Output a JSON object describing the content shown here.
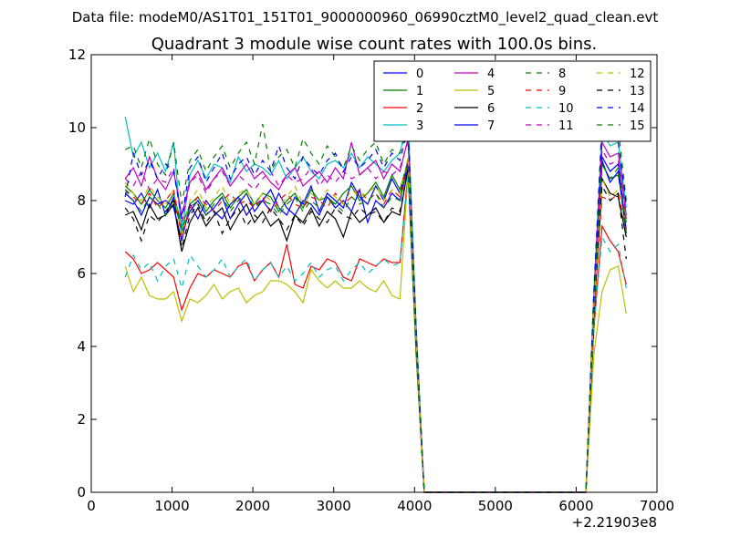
{
  "chart_data": {
    "type": "line",
    "suptitle": "Data file: modeM0/AS1T01_151T01_9000000960_06990cztM0_level2_quad_clean.evt",
    "title": "Quadrant 3 module wise count rates with 100.0s bins.",
    "xlabel": "",
    "ylabel": "",
    "x_offset_label": "+2.21903e8",
    "xlim": [
      0,
      7000
    ],
    "ylim": [
      0,
      12
    ],
    "x_ticks": [
      0,
      1000,
      2000,
      3000,
      4000,
      5000,
      6000,
      7000
    ],
    "x_tick_labels": [
      "0",
      "1000",
      "2000",
      "3000",
      "4000",
      "5000",
      "6000",
      "7000"
    ],
    "y_ticks": [
      0,
      2,
      4,
      6,
      8,
      10,
      12
    ],
    "y_tick_labels": [
      "0",
      "2",
      "4",
      "6",
      "8",
      "10",
      "12"
    ],
    "legend_position": "top-right",
    "x": [
      420,
      520,
      620,
      720,
      820,
      920,
      1020,
      1120,
      1220,
      1320,
      1420,
      1520,
      1620,
      1720,
      1820,
      1920,
      2020,
      2120,
      2220,
      2320,
      2420,
      2520,
      2620,
      2720,
      2820,
      2920,
      3020,
      3120,
      3220,
      3320,
      3420,
      3520,
      3620,
      3720,
      3820,
      3920,
      4020,
      4120,
      6120,
      6220,
      6320,
      6420,
      6520,
      6620
    ],
    "series": [
      {
        "name": "0",
        "color": "#0000ff",
        "dash": "solid",
        "values": [
          8.0,
          7.9,
          8.2,
          7.8,
          8.3,
          7.6,
          8.1,
          7.1,
          7.7,
          8.0,
          7.6,
          7.8,
          8.1,
          7.5,
          7.9,
          8.2,
          7.7,
          8.0,
          8.3,
          7.8,
          7.6,
          8.1,
          7.9,
          8.4,
          7.7,
          8.2,
          8.0,
          7.8,
          8.5,
          8.1,
          7.9,
          8.4,
          8.0,
          8.6,
          8.2,
          9.0,
          4.0,
          0.0,
          0.0,
          5.0,
          9.2,
          8.8,
          9.0,
          7.2
        ]
      },
      {
        "name": "1",
        "color": "#008000",
        "dash": "solid",
        "values": [
          8.4,
          8.2,
          7.9,
          8.3,
          8.0,
          7.8,
          8.2,
          7.3,
          7.9,
          8.1,
          7.7,
          8.0,
          8.2,
          7.8,
          8.1,
          8.3,
          7.9,
          8.2,
          8.1,
          7.7,
          8.0,
          8.2,
          7.8,
          8.3,
          8.0,
          8.1,
          7.9,
          8.2,
          8.4,
          8.0,
          8.2,
          8.5,
          8.1,
          8.7,
          8.3,
          9.1,
          4.0,
          0.0,
          0.0,
          5.0,
          9.0,
          8.6,
          8.7,
          7.4
        ]
      },
      {
        "name": "2",
        "color": "#ff0000",
        "dash": "solid",
        "values": [
          6.6,
          6.4,
          6.0,
          6.1,
          6.3,
          6.1,
          5.9,
          5.0,
          5.6,
          6.0,
          5.9,
          6.1,
          6.0,
          5.9,
          6.2,
          6.3,
          5.8,
          6.1,
          6.3,
          5.9,
          6.8,
          5.7,
          5.6,
          6.2,
          6.1,
          6.4,
          6.3,
          5.9,
          5.8,
          6.4,
          6.3,
          6.2,
          6.4,
          6.3,
          6.3,
          8.8,
          3.8,
          0.0,
          0.0,
          4.5,
          7.3,
          6.9,
          6.6,
          5.7
        ]
      },
      {
        "name": "3",
        "color": "#00bfbf",
        "dash": "solid",
        "values": [
          10.3,
          9.2,
          9.6,
          8.9,
          9.3,
          8.8,
          9.6,
          7.1,
          8.7,
          9.1,
          8.6,
          9.0,
          8.9,
          8.5,
          9.2,
          8.8,
          9.0,
          8.9,
          8.7,
          9.1,
          8.6,
          8.9,
          9.2,
          8.8,
          8.6,
          9.0,
          9.1,
          8.9,
          9.3,
          8.9,
          9.2,
          9.0,
          8.8,
          9.1,
          9.3,
          10.3,
          4.5,
          0.0,
          0.0,
          5.5,
          9.9,
          9.5,
          9.6,
          7.8
        ]
      },
      {
        "name": "4",
        "color": "#bf00bf",
        "dash": "solid",
        "values": [
          8.6,
          8.9,
          8.4,
          9.2,
          8.6,
          8.3,
          8.8,
          7.6,
          8.5,
          8.8,
          8.3,
          8.6,
          8.9,
          8.4,
          8.7,
          9.0,
          8.6,
          8.8,
          8.5,
          8.3,
          8.7,
          8.9,
          8.4,
          8.6,
          8.8,
          8.5,
          8.9,
          8.6,
          9.6,
          8.7,
          8.9,
          9.1,
          8.6,
          9.0,
          8.8,
          9.7,
          4.2,
          0.0,
          0.0,
          5.3,
          9.6,
          9.2,
          9.3,
          7.6
        ]
      },
      {
        "name": "5",
        "color": "#bfbf00",
        "dash": "solid",
        "values": [
          6.2,
          5.5,
          5.9,
          5.4,
          5.3,
          5.3,
          5.5,
          4.7,
          5.3,
          5.2,
          5.4,
          5.7,
          5.3,
          5.5,
          5.6,
          5.2,
          5.4,
          5.5,
          5.8,
          5.8,
          5.7,
          5.5,
          5.2,
          6.1,
          5.8,
          5.6,
          5.8,
          5.6,
          5.6,
          5.8,
          5.6,
          5.5,
          5.8,
          5.4,
          5.3,
          8.8,
          3.7,
          0.0,
          0.0,
          3.8,
          5.5,
          6.1,
          6.2,
          4.9
        ]
      },
      {
        "name": "6",
        "color": "#000000",
        "dash": "solid",
        "values": [
          7.6,
          7.7,
          7.2,
          7.9,
          7.5,
          7.6,
          7.9,
          6.6,
          7.4,
          7.8,
          7.3,
          7.6,
          7.8,
          7.2,
          7.6,
          7.9,
          7.4,
          7.7,
          7.3,
          7.5,
          6.9,
          7.6,
          7.4,
          7.8,
          7.3,
          7.7,
          7.5,
          7.0,
          7.7,
          7.4,
          7.6,
          7.8,
          7.4,
          7.7,
          7.6,
          8.9,
          3.9,
          0.0,
          0.0,
          4.8,
          8.6,
          8.2,
          8.1,
          7.0
        ]
      },
      {
        "name": "7",
        "color": "#0000ff",
        "dash": "solid",
        "values": [
          8.2,
          8.0,
          7.6,
          8.1,
          7.9,
          8.0,
          7.8,
          6.9,
          7.9,
          7.5,
          8.0,
          7.7,
          7.5,
          7.9,
          8.1,
          7.6,
          7.9,
          8.0,
          7.7,
          8.2,
          7.8,
          7.6,
          8.0,
          7.9,
          7.6,
          8.1,
          7.8,
          8.0,
          7.7,
          8.3,
          7.4,
          8.0,
          7.8,
          8.2,
          8.0,
          9.0,
          4.0,
          0.0,
          0.0,
          5.2,
          9.1,
          8.5,
          8.8,
          7.1
        ]
      },
      {
        "name": "8",
        "color": "#008000",
        "dash": "dashed",
        "values": [
          9.4,
          9.5,
          8.9,
          9.7,
          9.0,
          8.7,
          9.6,
          7.9,
          9.1,
          9.4,
          8.8,
          9.2,
          9.5,
          8.9,
          9.3,
          9.6,
          9.0,
          10.1,
          8.8,
          9.2,
          9.4,
          8.9,
          9.7,
          9.3,
          9.0,
          9.5,
          9.2,
          8.9,
          9.5,
          9.1,
          9.4,
          9.6,
          9.0,
          9.4,
          9.3,
          10.0,
          4.5,
          0.0,
          0.0,
          5.6,
          10.2,
          9.9,
          10.0,
          8.0
        ]
      },
      {
        "name": "9",
        "color": "#ff0000",
        "dash": "dashed",
        "values": [
          8.3,
          8.1,
          7.9,
          8.2,
          7.8,
          8.0,
          8.3,
          7.0,
          7.8,
          8.1,
          7.9,
          7.7,
          8.0,
          8.2,
          7.9,
          8.0,
          7.8,
          8.1,
          7.7,
          8.0,
          8.2,
          7.9,
          7.8,
          8.1,
          8.0,
          7.8,
          8.2,
          7.9,
          8.1,
          8.3,
          8.0,
          8.2,
          7.9,
          8.3,
          8.1,
          9.1,
          4.0,
          0.0,
          0.0,
          5.0,
          8.1,
          8.0,
          8.2,
          7.2
        ]
      },
      {
        "name": "10",
        "color": "#00bfbf",
        "dash": "dashed",
        "values": [
          5.9,
          6.5,
          6.1,
          6.3,
          5.8,
          6.2,
          6.4,
          5.6,
          6.5,
          6.2,
          5.9,
          6.1,
          6.4,
          5.9,
          6.2,
          6.4,
          5.8,
          6.1,
          6.3,
          5.9,
          6.2,
          5.8,
          6.0,
          6.3,
          5.9,
          6.1,
          6.2,
          5.8,
          6.1,
          6.3,
          6.0,
          6.2,
          6.4,
          6.2,
          6.3,
          8.7,
          3.8,
          0.0,
          0.0,
          4.6,
          7.0,
          6.6,
          6.8,
          5.6
        ]
      },
      {
        "name": "11",
        "color": "#bf00bf",
        "dash": "dashed",
        "values": [
          8.6,
          8.4,
          8.8,
          8.3,
          8.6,
          8.5,
          8.9,
          7.4,
          8.5,
          8.7,
          8.2,
          8.6,
          8.8,
          8.4,
          8.7,
          8.5,
          8.3,
          8.6,
          8.8,
          8.4,
          8.7,
          8.5,
          8.6,
          8.9,
          8.4,
          8.7,
          8.5,
          8.8,
          8.6,
          8.7,
          8.9,
          8.6,
          8.8,
          8.7,
          8.9,
          9.6,
          4.2,
          0.0,
          0.0,
          5.3,
          9.4,
          9.0,
          9.1,
          7.5
        ]
      },
      {
        "name": "12",
        "color": "#bfbf00",
        "dash": "dashed",
        "values": [
          8.5,
          8.2,
          8.0,
          8.4,
          8.1,
          7.9,
          8.3,
          7.0,
          8.0,
          8.3,
          7.8,
          8.1,
          8.4,
          7.9,
          8.2,
          8.3,
          7.9,
          8.2,
          8.0,
          7.8,
          8.1,
          8.4,
          7.9,
          8.2,
          8.0,
          8.3,
          8.1,
          7.9,
          8.3,
          8.1,
          8.2,
          8.4,
          8.0,
          8.3,
          8.2,
          9.2,
          4.1,
          0.0,
          0.0,
          5.1,
          8.6,
          8.1,
          8.3,
          7.3
        ]
      },
      {
        "name": "13",
        "color": "#000000",
        "dash": "dashed",
        "values": [
          7.8,
          7.5,
          6.9,
          7.6,
          7.4,
          7.7,
          8.0,
          6.7,
          7.6,
          7.9,
          7.4,
          7.7,
          7.1,
          7.5,
          7.8,
          7.3,
          7.6,
          7.4,
          7.8,
          7.5,
          7.2,
          7.6,
          7.3,
          7.7,
          7.5,
          7.4,
          7.8,
          7.6,
          7.5,
          7.8,
          7.6,
          7.7,
          7.4,
          7.8,
          7.7,
          8.9,
          3.9,
          0.0,
          0.0,
          4.9,
          8.4,
          8.0,
          8.2,
          6.4
        ]
      },
      {
        "name": "14",
        "color": "#0000ff",
        "dash": "dashed",
        "values": [
          8.1,
          9.3,
          8.7,
          9.1,
          8.6,
          9.0,
          8.8,
          7.5,
          8.9,
          9.2,
          8.5,
          8.9,
          9.3,
          8.6,
          9.0,
          9.2,
          8.7,
          9.1,
          8.8,
          9.5,
          8.9,
          8.6,
          9.2,
          8.9,
          8.7,
          9.1,
          9.3,
          8.8,
          9.2,
          8.9,
          9.1,
          9.4,
          8.9,
          9.3,
          9.1,
          10.0,
          4.4,
          0.0,
          0.0,
          5.5,
          10.0,
          9.7,
          9.6,
          7.9
        ]
      },
      {
        "name": "15",
        "color": "#008000",
        "dash": "dashed",
        "values": [
          8.3,
          8.0,
          7.7,
          8.1,
          7.9,
          7.6,
          8.0,
          7.2,
          7.8,
          8.0,
          7.6,
          7.9,
          8.1,
          7.7,
          8.0,
          8.2,
          7.8,
          8.0,
          7.9,
          7.6,
          7.9,
          8.1,
          7.7,
          8.0,
          7.8,
          8.0,
          7.9,
          7.7,
          8.1,
          7.9,
          8.0,
          8.2,
          7.8,
          8.1,
          8.0,
          9.0,
          4.0,
          0.0,
          0.0,
          5.0,
          9.0,
          8.6,
          8.9,
          7.1
        ]
      }
    ]
  }
}
